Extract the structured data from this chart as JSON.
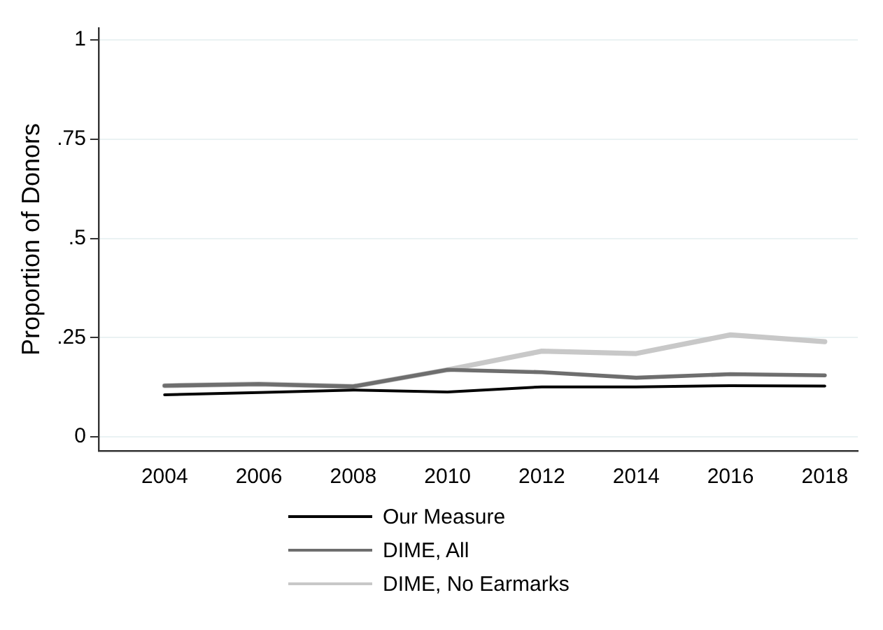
{
  "chart_data": {
    "type": "line",
    "ylabel": "Proportion of Donors",
    "x": [
      2004,
      2006,
      2008,
      2010,
      2012,
      2014,
      2016,
      2018
    ],
    "series": [
      {
        "name": "Our Measure",
        "color": "#000000",
        "values": [
          0.106,
          0.112,
          0.118,
          0.113,
          0.126,
          0.126,
          0.129,
          0.128
        ]
      },
      {
        "name": "DIME, All",
        "color": "#6e6e6e",
        "values": [
          0.129,
          0.133,
          0.127,
          0.169,
          0.163,
          0.149,
          0.158,
          0.155
        ]
      },
      {
        "name": "DIME, No Earmarks",
        "color": "#c8c8c8",
        "values": [
          0.129,
          0.133,
          0.127,
          0.169,
          0.216,
          0.21,
          0.257,
          0.24
        ]
      }
    ],
    "xlim": [
      2002.6,
      2018.7
    ],
    "xticks": [
      2004,
      2006,
      2008,
      2010,
      2012,
      2014,
      2016,
      2018
    ],
    "ylim": [
      -0.035,
      1.03
    ],
    "yticks": [
      {
        "value": 0,
        "label": "0"
      },
      {
        "value": 0.25,
        "label": ".25"
      },
      {
        "value": 0.5,
        "label": ".5"
      },
      {
        "value": 0.75,
        "label": ".75"
      },
      {
        "value": 1,
        "label": "1"
      }
    ],
    "grid": "y",
    "legend": "bottom",
    "marker": "none",
    "line_style": "solid"
  }
}
